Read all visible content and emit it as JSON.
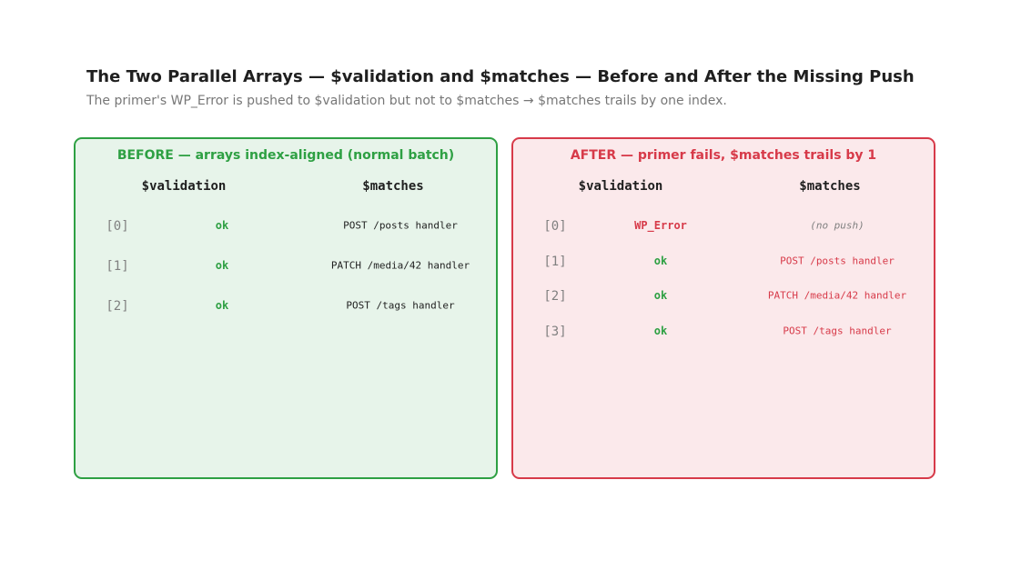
{
  "title": "The Two Parallel Arrays — $validation and $matches — Before and After the Missing Push",
  "subtitle": "The primer's WP_Error is pushed to $validation but not to $matches → $matches trails by one index.",
  "panels": {
    "before": {
      "heading": "BEFORE — arrays index-aligned (normal batch)",
      "col_validation": "$validation",
      "col_matches": "$matches",
      "rows": [
        {
          "index": "[0]",
          "validation": "ok",
          "match": "POST /posts handler"
        },
        {
          "index": "[1]",
          "validation": "ok",
          "match": "PATCH /media/42 handler"
        },
        {
          "index": "[2]",
          "validation": "ok",
          "match": "POST /tags handler"
        }
      ]
    },
    "after": {
      "heading": "AFTER — primer fails, $matches trails by 1",
      "col_validation": "$validation",
      "col_matches": "$matches",
      "rows": [
        {
          "index": "[0]",
          "validation": "WP_Error",
          "match": "(no push)"
        },
        {
          "index": "[1]",
          "validation": "ok",
          "match": "POST /posts handler"
        },
        {
          "index": "[2]",
          "validation": "ok",
          "match": "PATCH /media/42 handler"
        },
        {
          "index": "[3]",
          "validation": "ok",
          "match": "POST /tags handler"
        }
      ]
    }
  },
  "colors": {
    "before_border": "#2ea043",
    "before_fill": "#e7f4ea",
    "after_border": "#d73a49",
    "after_fill": "#fbe9eb"
  }
}
